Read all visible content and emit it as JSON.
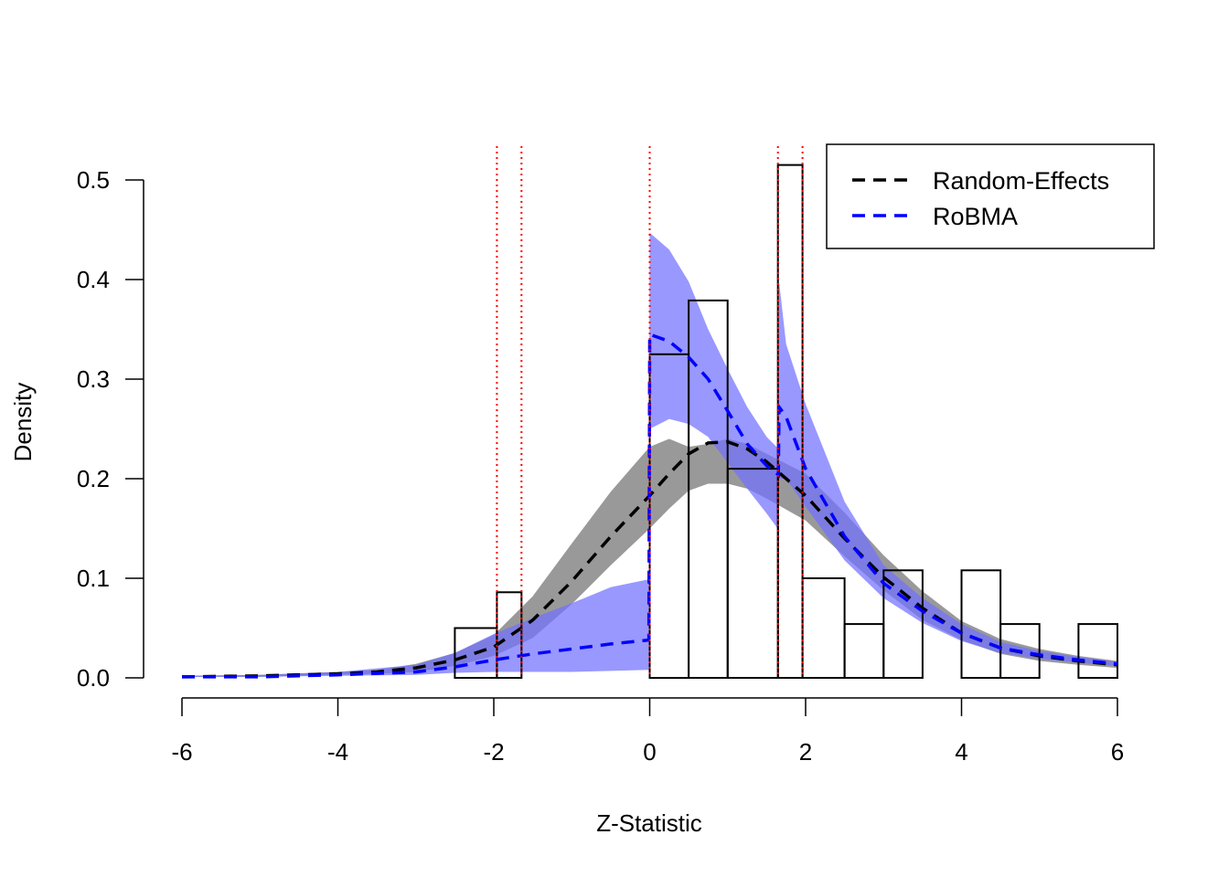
{
  "chart_data": {
    "type": "bar",
    "title": "",
    "xlabel": "Z-Statistic",
    "ylabel": "Density",
    "xlim": [
      -6,
      6
    ],
    "ylim": [
      0,
      0.5
    ],
    "x_ticks": [
      -6,
      -4,
      -2,
      0,
      2,
      4,
      6
    ],
    "y_ticks": [
      0.0,
      0.1,
      0.2,
      0.3,
      0.4,
      0.5
    ],
    "x_tick_labels": [
      "-6",
      "-4",
      "-2",
      "0",
      "2",
      "4",
      "6"
    ],
    "y_tick_labels": [
      "0.0",
      "0.1",
      "0.2",
      "0.3",
      "0.4",
      "0.5"
    ],
    "grid": false,
    "legend_position": "top-right",
    "histogram": {
      "breaks": [
        -2.5,
        -1.96,
        -1.645,
        0,
        0.5,
        1,
        1.645,
        1.96,
        2.5,
        3,
        3.5,
        4,
        4.5,
        5,
        5.5,
        6
      ],
      "density": [
        0.05,
        0.086,
        0,
        0.325,
        0.379,
        0.21,
        0.515,
        0.1,
        0.054,
        0.108,
        0,
        0.108,
        0.054,
        0,
        0.054
      ]
    },
    "cutoff_lines": [
      -1.96,
      -1.645,
      0,
      1.645,
      1.96
    ],
    "colors": {
      "random_effects_line": "#000000",
      "random_effects_band": "#808080",
      "robma_line": "#0000ff",
      "robma_band": "#7070ff",
      "cutoffs": "#ff0000",
      "bars": "#000000"
    },
    "series": [
      {
        "name": "Random-Effects",
        "x": [
          -6,
          -5,
          -4,
          -3.5,
          -3,
          -2.5,
          -2,
          -1.5,
          -1,
          -0.5,
          0,
          0.25,
          0.5,
          0.75,
          1,
          1.25,
          1.5,
          2,
          2.5,
          3,
          3.5,
          4,
          4.5,
          5,
          5.5,
          6
        ],
        "y": [
          0.001,
          0.002,
          0.004,
          0.006,
          0.01,
          0.018,
          0.031,
          0.058,
          0.097,
          0.142,
          0.183,
          0.205,
          0.225,
          0.236,
          0.237,
          0.23,
          0.217,
          0.183,
          0.14,
          0.101,
          0.07,
          0.045,
          0.03,
          0.022,
          0.017,
          0.013
        ],
        "lower": [
          0.001,
          0.001,
          0.003,
          0.004,
          0.006,
          0.012,
          0.022,
          0.04,
          0.074,
          0.113,
          0.15,
          0.17,
          0.188,
          0.195,
          0.195,
          0.19,
          0.18,
          0.158,
          0.122,
          0.088,
          0.058,
          0.038,
          0.024,
          0.017,
          0.013,
          0.01
        ],
        "upper": [
          0.002,
          0.003,
          0.006,
          0.008,
          0.014,
          0.025,
          0.043,
          0.082,
          0.135,
          0.187,
          0.232,
          0.24,
          0.232,
          0.235,
          0.24,
          0.235,
          0.225,
          0.205,
          0.166,
          0.123,
          0.087,
          0.057,
          0.039,
          0.029,
          0.022,
          0.017
        ]
      },
      {
        "name": "RoBMA",
        "x": [
          -6,
          -5,
          -4,
          -3,
          -2.5,
          -2,
          -1.5,
          -1,
          -0.5,
          -0.01,
          0,
          0.25,
          0.5,
          0.75,
          1,
          1.25,
          1.5,
          1.65,
          1.66,
          1.75,
          2,
          2.5,
          3,
          3.5,
          4,
          4.5,
          5,
          5.5,
          6
        ],
        "y": [
          0.001,
          0.001,
          0.003,
          0.006,
          0.011,
          0.018,
          0.024,
          0.029,
          0.034,
          0.038,
          0.345,
          0.338,
          0.322,
          0.3,
          0.268,
          0.235,
          0.213,
          0.204,
          0.272,
          0.262,
          0.21,
          0.142,
          0.095,
          0.067,
          0.045,
          0.03,
          0.023,
          0.018,
          0.014
        ],
        "lower": [
          0.001,
          0.001,
          0.002,
          0.003,
          0.005,
          0.006,
          0.006,
          0.006,
          0.007,
          0.008,
          0.25,
          0.26,
          0.255,
          0.242,
          0.216,
          0.19,
          0.165,
          0.149,
          0.2,
          0.2,
          0.172,
          0.118,
          0.08,
          0.055,
          0.037,
          0.025,
          0.019,
          0.015,
          0.012
        ],
        "upper": [
          0.002,
          0.003,
          0.006,
          0.013,
          0.025,
          0.044,
          0.06,
          0.075,
          0.091,
          0.099,
          0.447,
          0.43,
          0.398,
          0.35,
          0.31,
          0.272,
          0.242,
          0.23,
          0.398,
          0.335,
          0.275,
          0.177,
          0.113,
          0.08,
          0.054,
          0.036,
          0.027,
          0.021,
          0.016
        ]
      }
    ]
  }
}
